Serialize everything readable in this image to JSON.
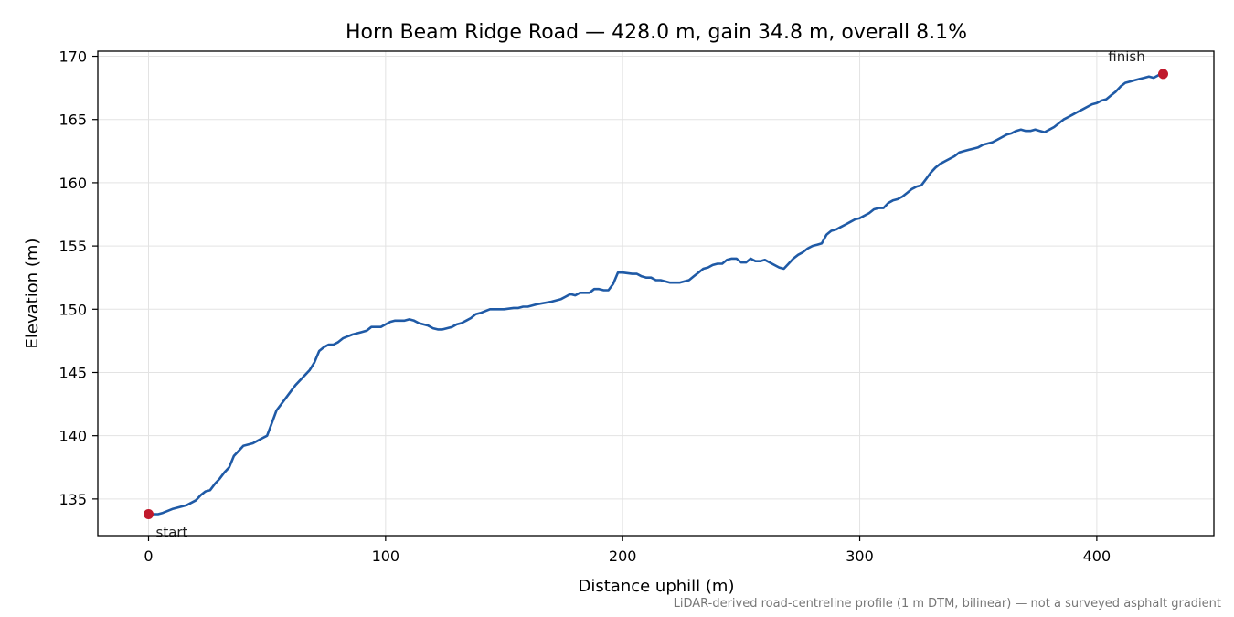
{
  "chart_data": {
    "type": "line",
    "title": "Horn Beam Ridge Road — 428.0 m, gain 34.8 m, overall 8.1%",
    "xlabel": "Distance uphill (m)",
    "ylabel": "Elevation (m)",
    "xlim": [
      -21.4,
      449.4
    ],
    "ylim": [
      132.1,
      170.4
    ],
    "xticks": [
      0,
      100,
      200,
      300,
      400
    ],
    "yticks": [
      135,
      140,
      145,
      150,
      155,
      160,
      165,
      170
    ],
    "grid": true,
    "line_color": "#1f5aa6",
    "marker_color": "#c0192c",
    "series": [
      {
        "x": [
          0,
          4,
          6,
          10,
          16,
          20,
          22,
          24,
          26,
          28,
          30,
          32,
          34,
          36,
          38,
          40,
          42,
          44,
          46,
          48,
          50,
          52,
          54,
          56,
          58,
          60,
          62,
          64,
          66,
          68,
          70,
          72,
          74,
          76,
          78,
          80,
          82,
          86,
          90,
          92,
          94,
          96,
          98,
          100,
          102,
          104,
          108,
          110,
          112,
          114,
          118,
          120,
          122,
          124,
          128,
          130,
          132,
          134,
          136,
          138,
          140,
          144,
          146,
          148,
          150,
          154,
          156,
          158,
          160,
          164,
          170,
          174,
          176,
          178,
          180,
          182,
          184,
          186,
          188,
          190,
          192,
          194,
          196,
          198,
          200,
          204,
          206,
          208,
          210,
          212,
          214,
          216,
          218,
          220,
          222,
          224,
          226,
          228,
          230,
          232,
          234,
          236,
          238,
          240,
          242,
          244,
          246,
          248,
          250,
          252,
          254,
          256,
          258,
          260,
          262,
          264,
          266,
          268,
          270,
          272,
          274,
          276,
          278,
          280,
          282,
          284,
          286,
          288,
          290,
          292,
          294,
          296,
          298,
          300,
          302,
          304,
          306,
          308,
          310,
          312,
          314,
          316,
          318,
          320,
          322,
          324,
          326,
          328,
          330,
          332,
          334,
          336,
          338,
          340,
          342,
          344,
          346,
          348,
          350,
          352,
          354,
          356,
          358,
          360,
          362,
          364,
          366,
          368,
          370,
          372,
          374,
          376,
          378,
          380,
          382,
          384,
          386,
          388,
          390,
          392,
          394,
          396,
          398,
          400,
          402,
          404,
          406,
          408,
          410,
          412,
          414,
          416,
          418,
          420,
          422,
          424,
          426,
          428
        ],
        "y": [
          133.8,
          133.8,
          133.9,
          134.2,
          134.5,
          134.9,
          135.3,
          135.6,
          135.7,
          136.2,
          136.6,
          137.1,
          137.5,
          138.4,
          138.8,
          139.2,
          139.3,
          139.4,
          139.6,
          139.8,
          140.0,
          141.0,
          142.0,
          142.5,
          143.0,
          143.5,
          144.0,
          144.4,
          144.8,
          145.2,
          145.8,
          146.7,
          147.0,
          147.2,
          147.2,
          147.4,
          147.7,
          148.0,
          148.2,
          148.3,
          148.6,
          148.6,
          148.6,
          148.8,
          149.0,
          149.1,
          149.1,
          149.2,
          149.1,
          148.9,
          148.7,
          148.5,
          148.4,
          148.4,
          148.6,
          148.8,
          148.9,
          149.1,
          149.3,
          149.6,
          149.7,
          150.0,
          150.0,
          150.0,
          150.0,
          150.1,
          150.1,
          150.2,
          150.2,
          150.4,
          150.6,
          150.8,
          151.0,
          151.2,
          151.1,
          151.3,
          151.3,
          151.3,
          151.6,
          151.6,
          151.5,
          151.5,
          152.0,
          152.9,
          152.9,
          152.8,
          152.8,
          152.6,
          152.5,
          152.5,
          152.3,
          152.3,
          152.2,
          152.1,
          152.1,
          152.1,
          152.2,
          152.3,
          152.6,
          152.9,
          153.2,
          153.3,
          153.5,
          153.6,
          153.6,
          153.9,
          154.0,
          154.0,
          153.7,
          153.7,
          154.0,
          153.8,
          153.8,
          153.9,
          153.7,
          153.5,
          153.3,
          153.2,
          153.6,
          154.0,
          154.3,
          154.5,
          154.8,
          155.0,
          155.1,
          155.2,
          155.9,
          156.2,
          156.3,
          156.5,
          156.7,
          156.9,
          157.1,
          157.2,
          157.4,
          157.6,
          157.9,
          158.0,
          158.0,
          158.4,
          158.6,
          158.7,
          158.9,
          159.2,
          159.5,
          159.7,
          159.8,
          160.3,
          160.8,
          161.2,
          161.5,
          161.7,
          161.9,
          162.1,
          162.4,
          162.5,
          162.6,
          162.7,
          162.8,
          163.0,
          163.1,
          163.2,
          163.4,
          163.6,
          163.8,
          163.9,
          164.1,
          164.2,
          164.1,
          164.1,
          164.2,
          164.1,
          164.0,
          164.2,
          164.4,
          164.7,
          165.0,
          165.2,
          165.4,
          165.6,
          165.8,
          166.0,
          166.2,
          166.3,
          166.5,
          166.6,
          166.9,
          167.2,
          167.6,
          167.9,
          168.0,
          168.1,
          168.2,
          168.3,
          168.4,
          168.3,
          168.5,
          168.6
        ]
      }
    ],
    "annotations": [
      {
        "text": "start",
        "x": 0,
        "y": 133.8
      },
      {
        "text": "finish",
        "x": 428,
        "y": 168.6
      }
    ],
    "footnote": "LiDAR-derived road-centreline profile (1 m DTM, bilinear) — not a surveyed asphalt gradient"
  }
}
